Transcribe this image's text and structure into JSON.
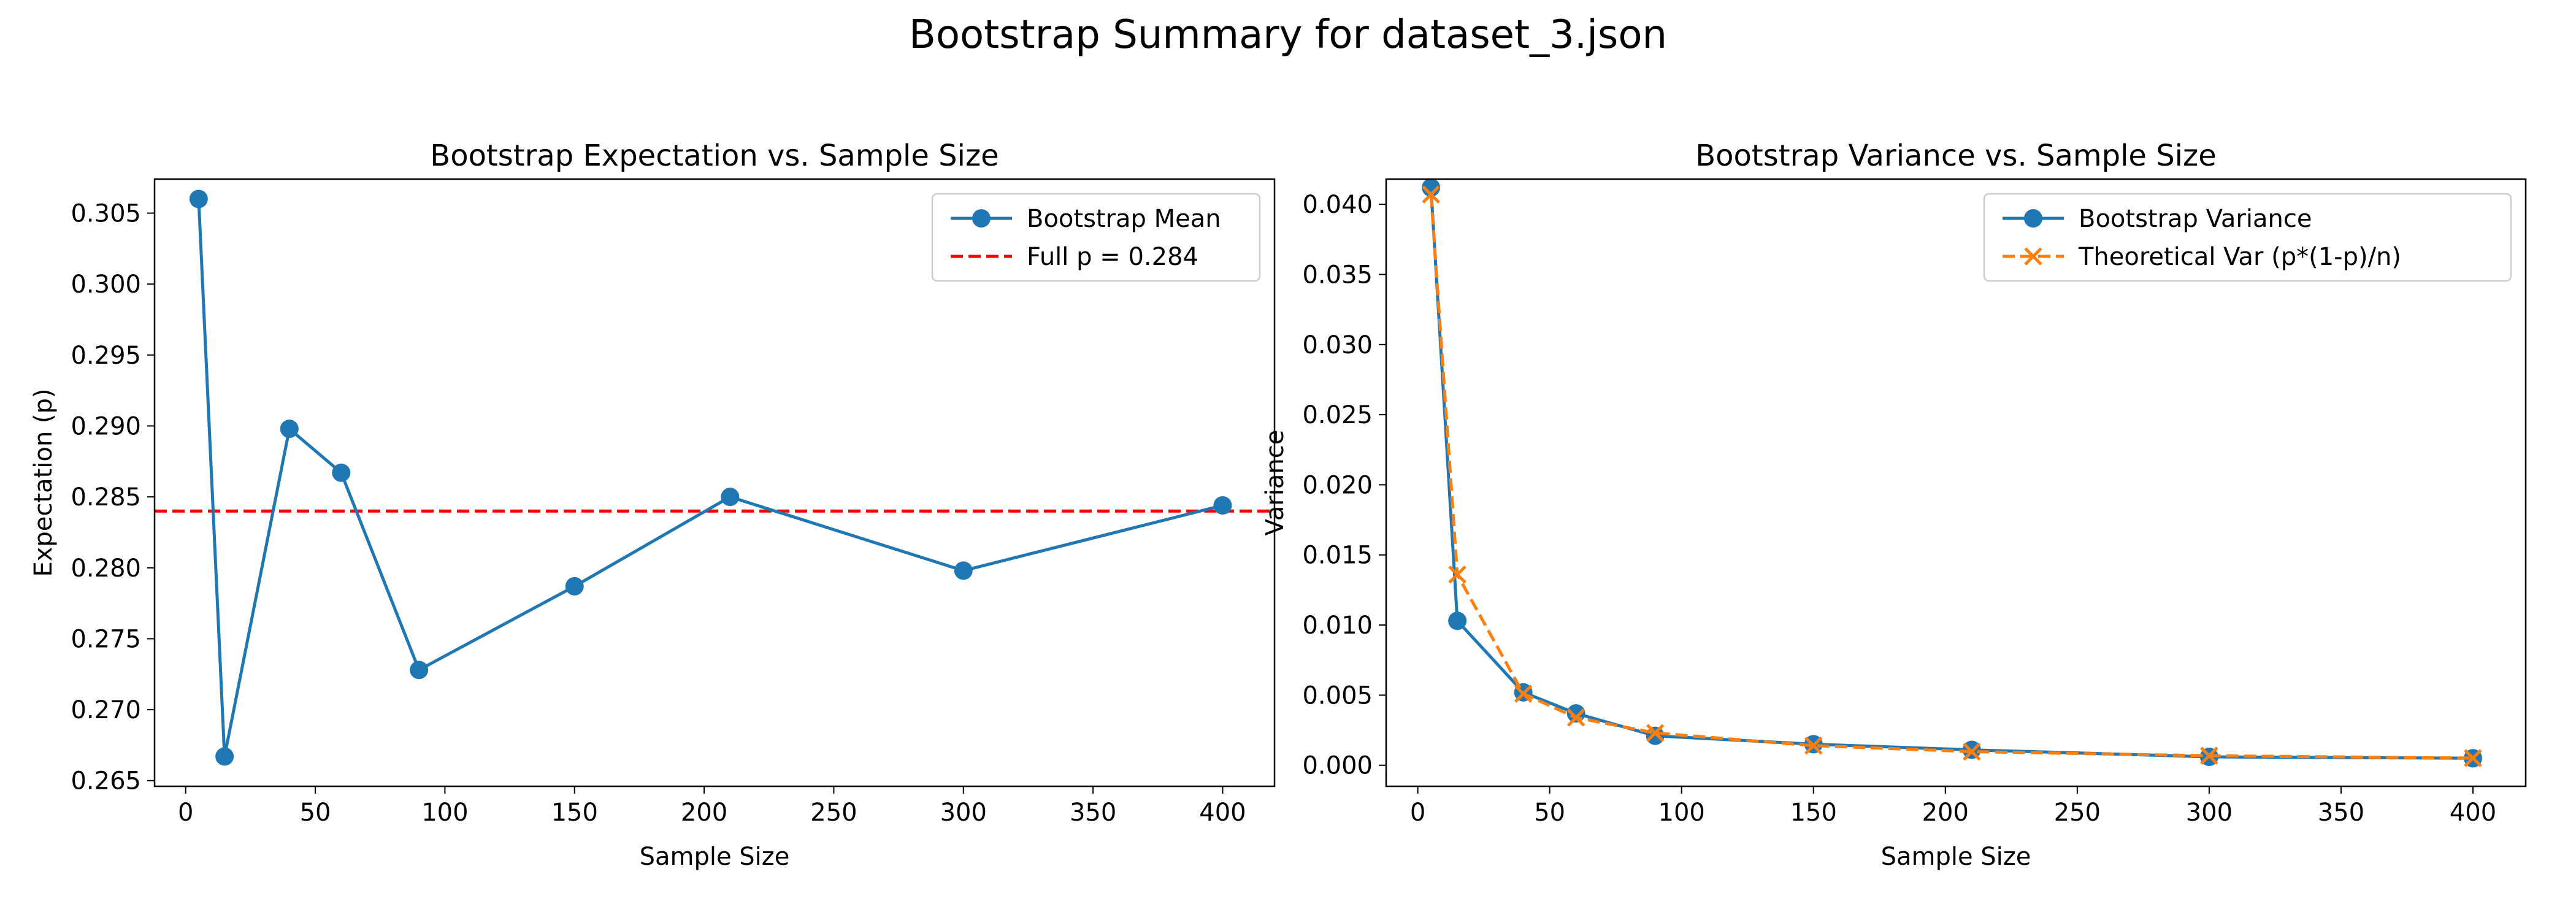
{
  "figure": {
    "title": "Bootstrap Summary for dataset_3.json"
  },
  "chart_data": [
    {
      "type": "line",
      "title": "Bootstrap Expectation vs. Sample Size",
      "xlabel": "Sample Size",
      "ylabel": "Expectation (p)",
      "xlim": [
        -12,
        420
      ],
      "ylim": [
        0.2646,
        0.3074
      ],
      "xticks": [
        0,
        50,
        100,
        150,
        200,
        250,
        300,
        350,
        400
      ],
      "xtick_labels": [
        "0",
        "50",
        "100",
        "150",
        "200",
        "250",
        "300",
        "350",
        "400"
      ],
      "yticks": [
        0.265,
        0.27,
        0.275,
        0.28,
        0.285,
        0.29,
        0.295,
        0.3,
        0.305
      ],
      "ytick_labels": [
        "0.265",
        "0.270",
        "0.275",
        "0.280",
        "0.285",
        "0.290",
        "0.295",
        "0.300",
        "0.305"
      ],
      "grid": false,
      "legend_position": "top-right",
      "series": [
        {
          "name": "Bootstrap Mean",
          "color": "#1f77b4",
          "style": "solid",
          "marker": "circle",
          "x": [
            5,
            15,
            40,
            60,
            90,
            150,
            210,
            300,
            400
          ],
          "y": [
            0.306,
            0.2667,
            0.2898,
            0.2867,
            0.2728,
            0.2787,
            0.285,
            0.2798,
            0.2844
          ]
        }
      ],
      "hlines": [
        {
          "name": "Full p = 0.284",
          "y": 0.284,
          "color": "#ff0000",
          "style": "dashed"
        }
      ]
    },
    {
      "type": "line",
      "title": "Bootstrap Variance vs. Sample Size",
      "xlabel": "Sample Size",
      "ylabel": "Variance",
      "xlim": [
        -12,
        420
      ],
      "ylim": [
        -0.0015,
        0.0418
      ],
      "xticks": [
        0,
        50,
        100,
        150,
        200,
        250,
        300,
        350,
        400
      ],
      "xtick_labels": [
        "0",
        "50",
        "100",
        "150",
        "200",
        "250",
        "300",
        "350",
        "400"
      ],
      "yticks": [
        0.0,
        0.005,
        0.01,
        0.015,
        0.02,
        0.025,
        0.03,
        0.035,
        0.04
      ],
      "ytick_labels": [
        "0.000",
        "0.005",
        "0.010",
        "0.015",
        "0.020",
        "0.025",
        "0.030",
        "0.035",
        "0.040"
      ],
      "grid": false,
      "legend_position": "top-right",
      "series": [
        {
          "name": "Bootstrap Variance",
          "color": "#1f77b4",
          "style": "solid",
          "marker": "circle",
          "x": [
            5,
            15,
            40,
            60,
            90,
            150,
            210,
            300,
            400
          ],
          "y": [
            0.0412,
            0.0103,
            0.0052,
            0.0037,
            0.0021,
            0.0015,
            0.0011,
            0.0006,
            0.0005
          ]
        },
        {
          "name": "Theoretical Var (p*(1-p)/n)",
          "color": "#ff7f0e",
          "style": "dashed",
          "marker": "x",
          "x": [
            5,
            15,
            40,
            60,
            90,
            150,
            210,
            300,
            400
          ],
          "y": [
            0.0407,
            0.0136,
            0.0051,
            0.0034,
            0.0023,
            0.0014,
            0.00097,
            0.00068,
            0.00051
          ]
        }
      ],
      "hlines": []
    }
  ]
}
